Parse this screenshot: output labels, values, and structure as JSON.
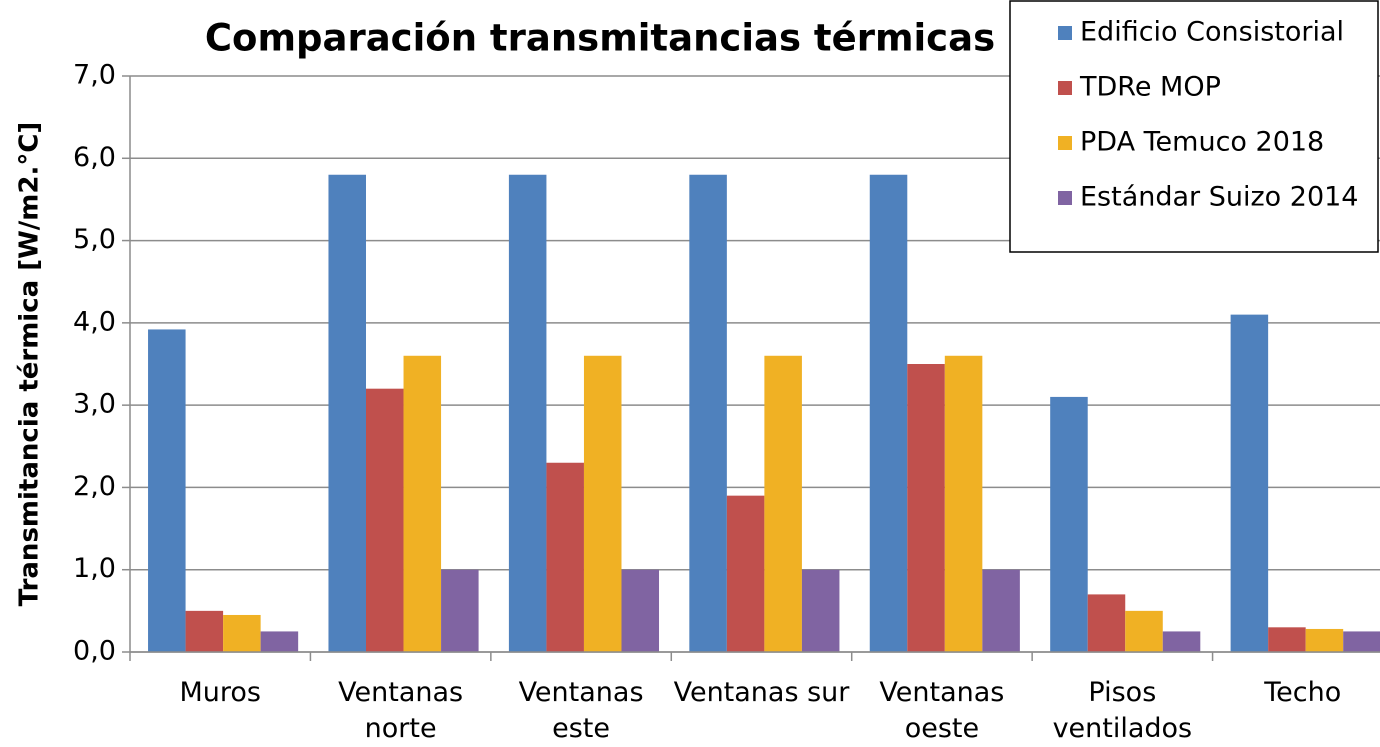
{
  "chart_data": {
    "type": "bar",
    "title": "Comparación transmitancias térmicas",
    "y_label": "Transmitancia térmica [W/m2.°C]",
    "categories": [
      "Muros",
      "Ventanas norte",
      "Ventanas este",
      "Ventanas sur",
      "Ventanas oeste",
      "Pisos ventilados",
      "Techo"
    ],
    "series": [
      {
        "name": "Edificio Consistorial",
        "color": "#4f81bd",
        "values": [
          3.92,
          5.8,
          5.8,
          5.8,
          5.8,
          3.1,
          4.1
        ]
      },
      {
        "name": "TDRe MOP",
        "color": "#c0504d",
        "values": [
          0.5,
          3.2,
          2.3,
          1.9,
          3.5,
          0.7,
          0.3
        ]
      },
      {
        "name": "PDA Temuco 2018",
        "color": "#f0b124",
        "values": [
          0.45,
          3.6,
          3.6,
          3.6,
          3.6,
          0.5,
          0.28
        ]
      },
      {
        "name": "Estándar Suizo 2014",
        "color": "#8064a2",
        "values": [
          0.25,
          1.0,
          1.0,
          1.0,
          1.0,
          0.25,
          0.25
        ]
      }
    ],
    "ylim": [
      0,
      7
    ],
    "yticks": [
      {
        "value": 0,
        "label": "0,0"
      },
      {
        "value": 1,
        "label": "1,0"
      },
      {
        "value": 2,
        "label": "2,0"
      },
      {
        "value": 3,
        "label": "3,0"
      },
      {
        "value": 4,
        "label": "4,0"
      },
      {
        "value": 5,
        "label": "5,0"
      },
      {
        "value": 6,
        "label": "6,0"
      },
      {
        "value": 7,
        "label": "7,0"
      }
    ],
    "grid": true,
    "legend": "upper right"
  }
}
